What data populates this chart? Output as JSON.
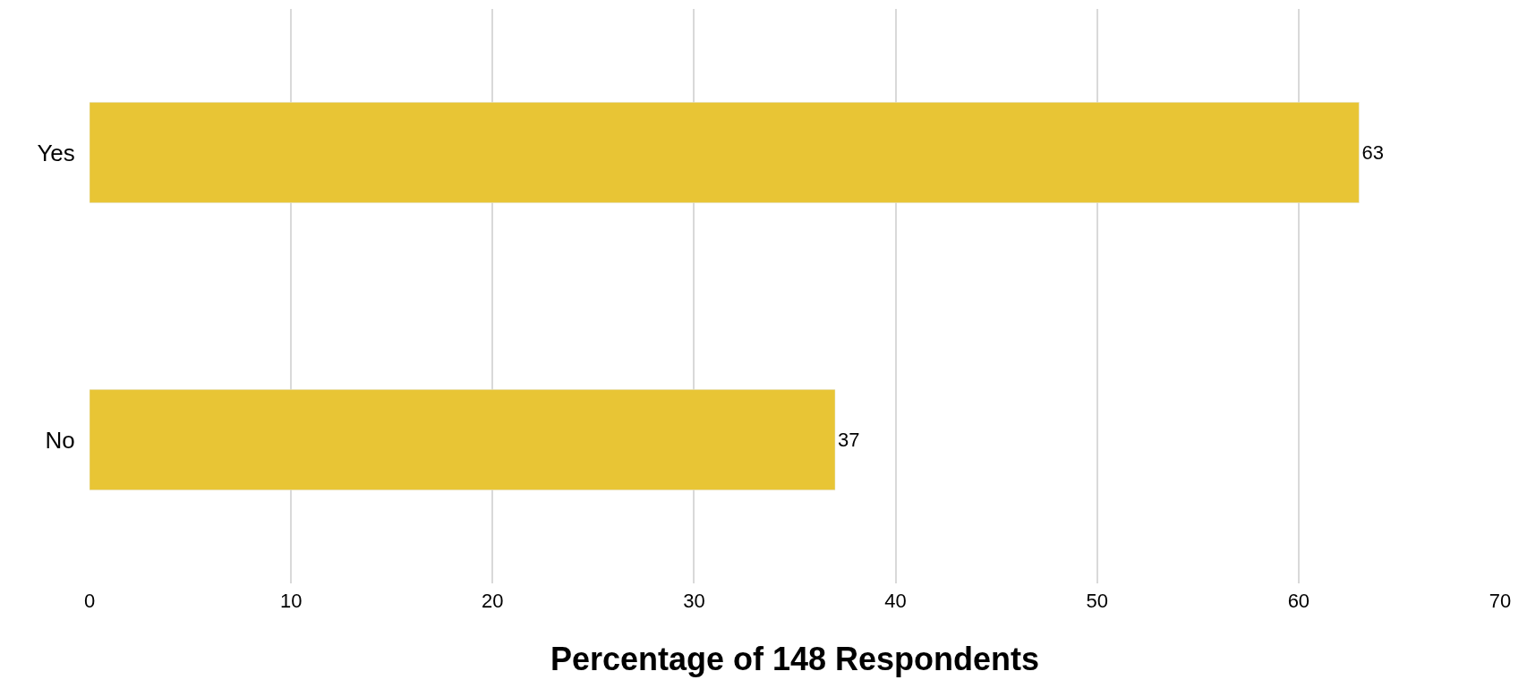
{
  "chart_data": {
    "type": "bar",
    "orientation": "horizontal",
    "xlabel": "Percentage of 148 Respondents",
    "categories": [
      "Yes",
      "No"
    ],
    "values": [
      63,
      37
    ],
    "color": "#e8c535",
    "xlim": [
      0,
      70
    ],
    "xticks": [
      0,
      10,
      20,
      30,
      40,
      50,
      60,
      70
    ],
    "grid": "x",
    "data_labels": true,
    "legend": false
  }
}
